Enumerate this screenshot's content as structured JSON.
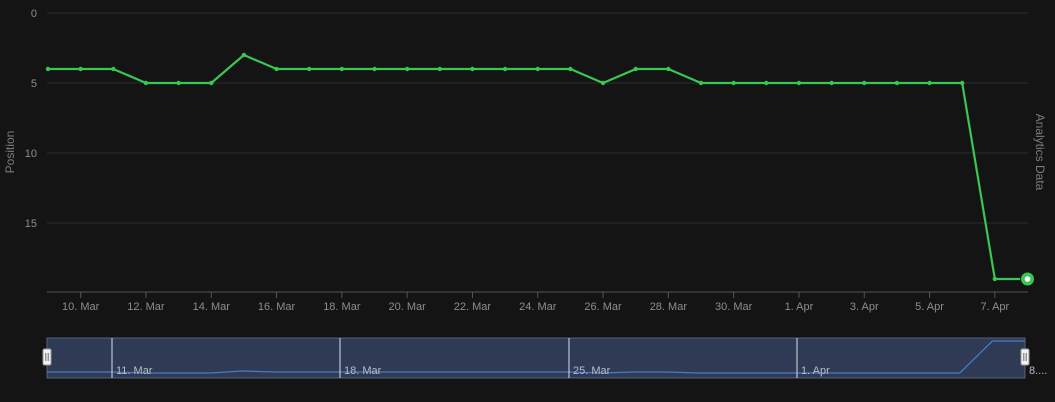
{
  "chart_data": {
    "type": "line",
    "title": "",
    "xlabel": "",
    "ylabel": "Position",
    "y2label": "Analytics Data",
    "y_reversed": true,
    "ylim": [
      0,
      19.5
    ],
    "y_ticks": [
      "0",
      "5",
      "10",
      "15"
    ],
    "x": [
      "9. Mar",
      "10. Mar",
      "11. Mar",
      "12. Mar",
      "13. Mar",
      "14. Mar",
      "15. Mar",
      "16. Mar",
      "17. Mar",
      "18. Mar",
      "19. Mar",
      "20. Mar",
      "21. Mar",
      "22. Mar",
      "23. Mar",
      "24. Mar",
      "25. Mar",
      "26. Mar",
      "27. Mar",
      "28. Mar",
      "29. Mar",
      "30. Mar",
      "31. Mar",
      "1. Apr",
      "2. Apr",
      "3. Apr",
      "4. Apr",
      "5. Apr",
      "6. Apr",
      "7. Apr",
      "8. Apr"
    ],
    "x_tick_labels": [
      "10. Mar",
      "12. Mar",
      "14. Mar",
      "16. Mar",
      "18. Mar",
      "20. Mar",
      "22. Mar",
      "24. Mar",
      "26. Mar",
      "28. Mar",
      "30. Mar",
      "1. Apr",
      "3. Apr",
      "5. Apr",
      "7. Apr"
    ],
    "series": [
      {
        "values": [
          4,
          4,
          4,
          5,
          5,
          5,
          3,
          4,
          4,
          4,
          4,
          4,
          4,
          4,
          4,
          4,
          4,
          5,
          4,
          4,
          5,
          5,
          5,
          5,
          5,
          5,
          5,
          5,
          5,
          19,
          19
        ],
        "color": "#39c653"
      }
    ],
    "grid": true,
    "navigator": {
      "labels": [
        "11. Mar",
        "18. Mar",
        "25. Mar",
        "1. Apr",
        "8...."
      ],
      "fill_color": "#2f3b54",
      "line_color": "#4a78c2"
    }
  }
}
